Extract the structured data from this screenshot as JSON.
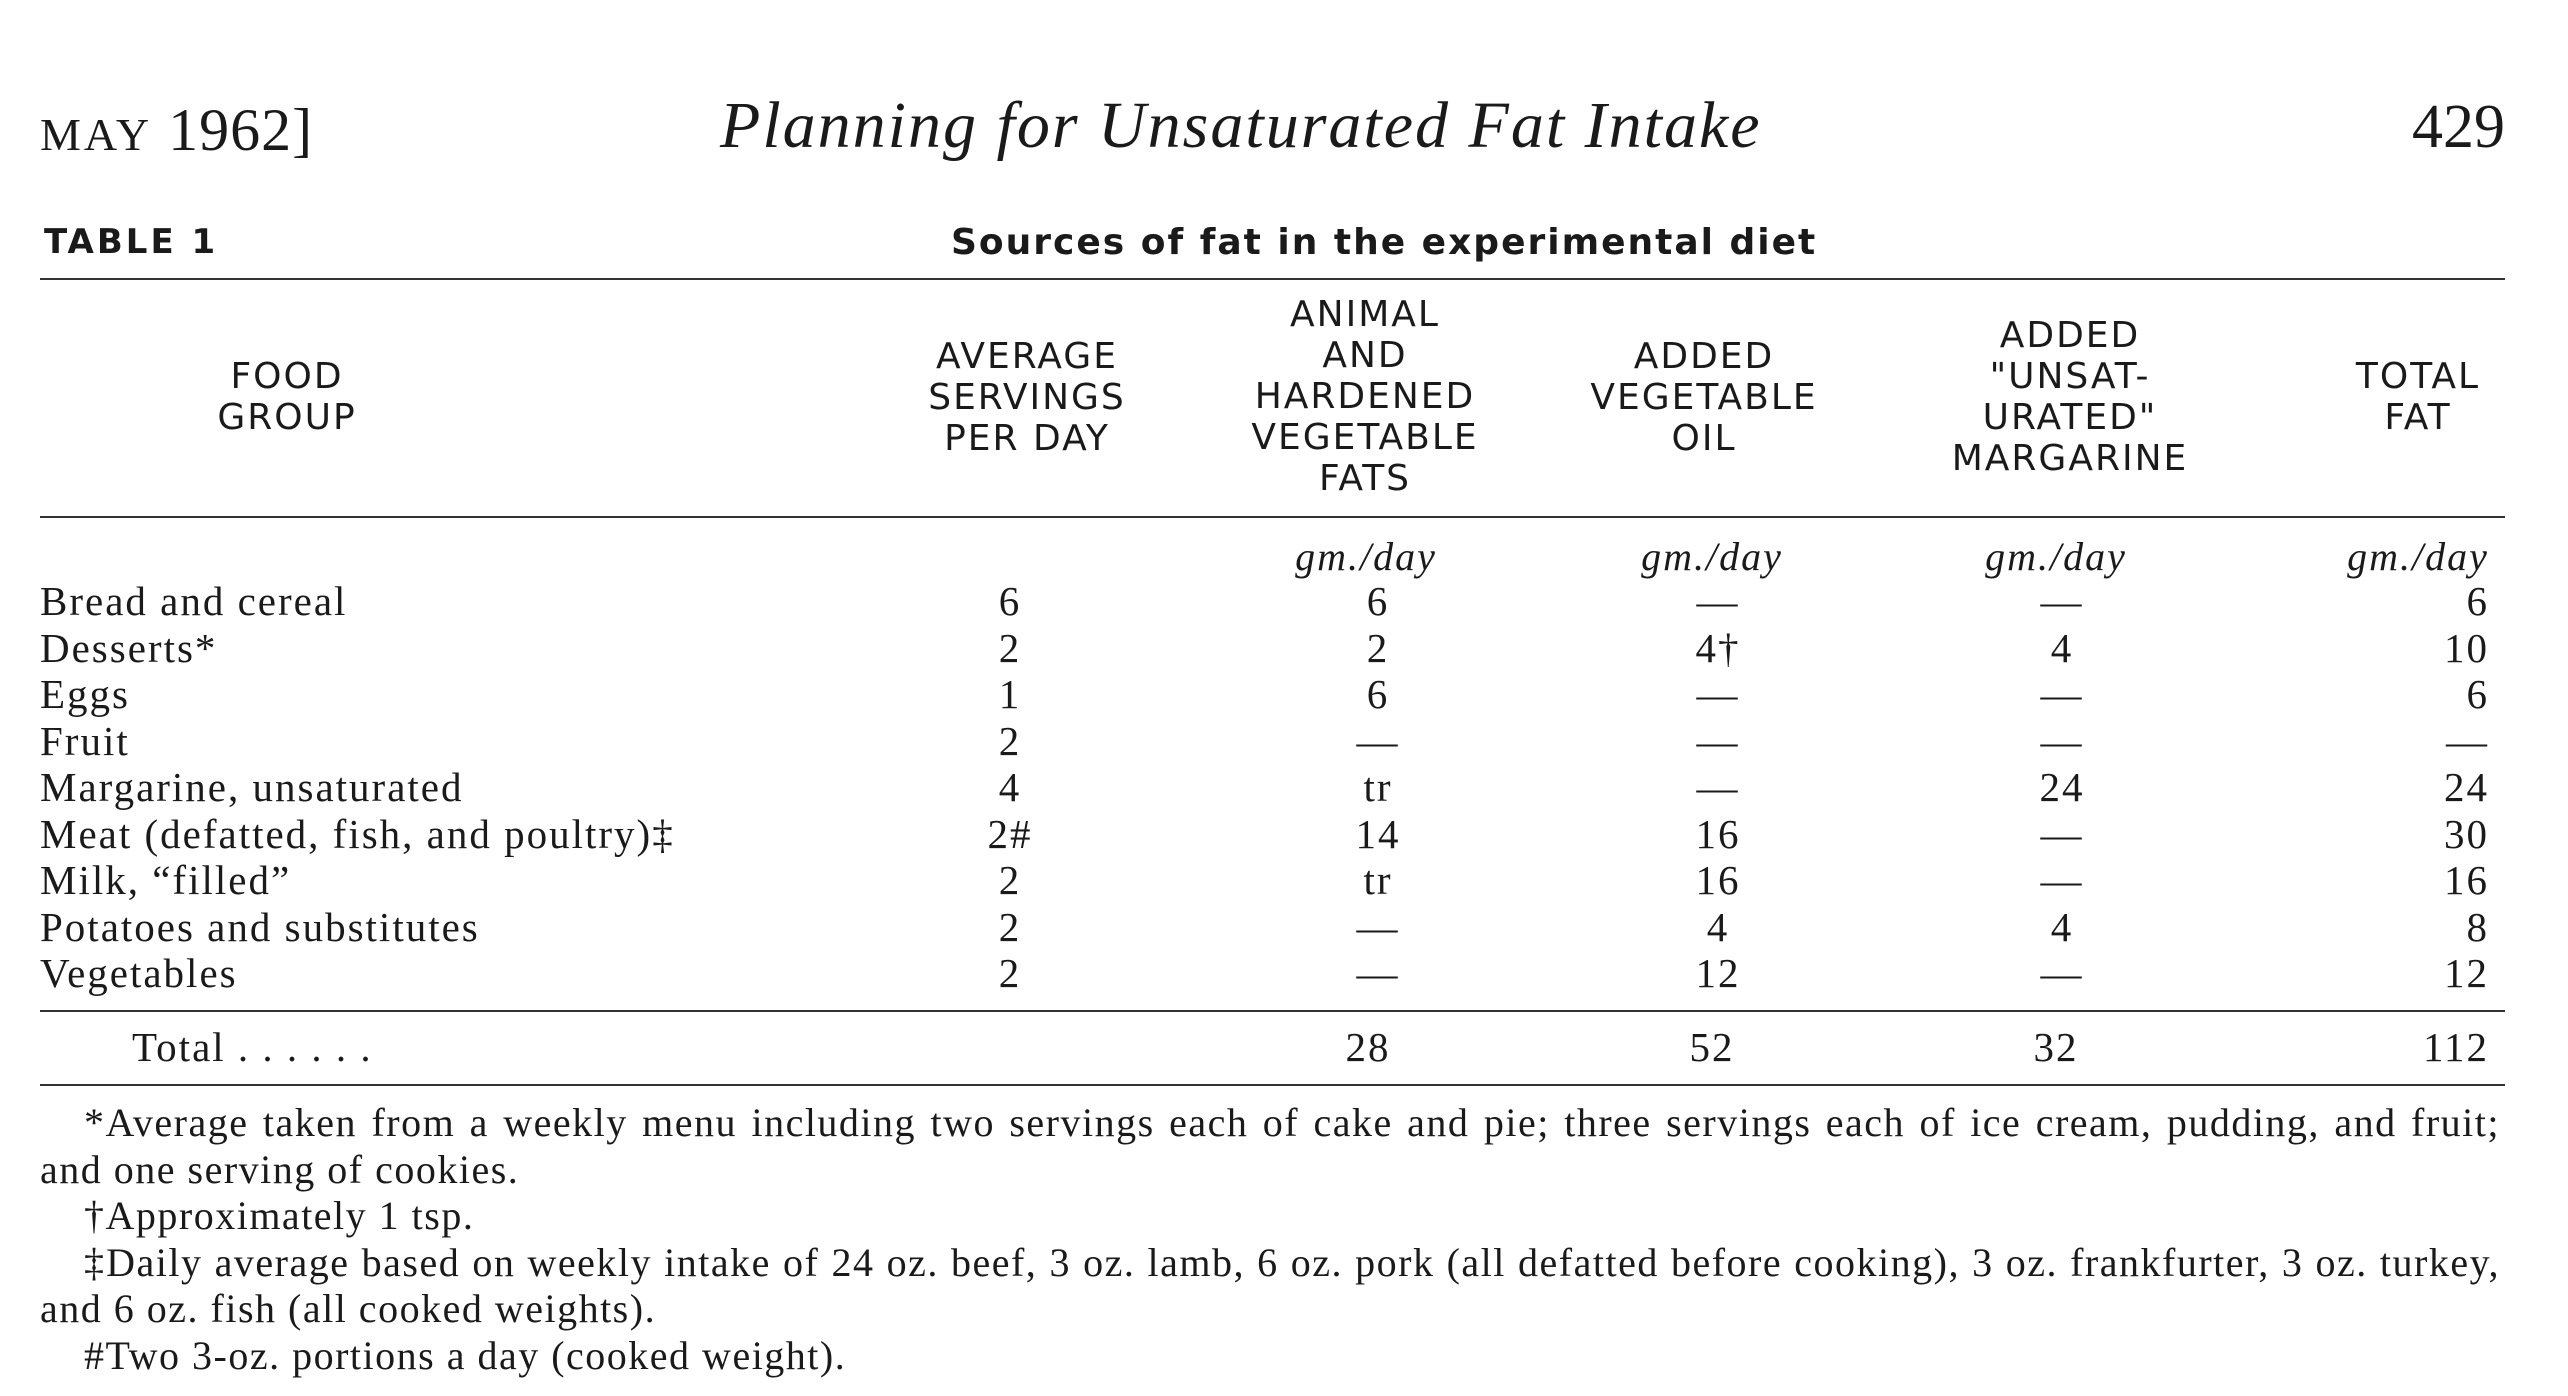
{
  "running_header": {
    "month": "MAY",
    "year_bracket": "1962]",
    "title": "Planning for Unsaturated Fat Intake",
    "page_number": "429"
  },
  "table": {
    "label": "TABLE 1",
    "title": "Sources of fat in the experimental diet",
    "columns": [
      {
        "key": "food",
        "heading": "FOOD\nGROUP",
        "unit": ""
      },
      {
        "key": "servings",
        "heading": "AVERAGE\nSERVINGS\nPER DAY",
        "unit": ""
      },
      {
        "key": "animal",
        "heading": "ANIMAL\nAND\nHARDENED\nVEGETABLE\nFATS",
        "unit": "gm./day"
      },
      {
        "key": "oil",
        "heading": "ADDED\nVEGETABLE\nOIL",
        "unit": "gm./day"
      },
      {
        "key": "margarine",
        "heading": "ADDED\n\"UNSAT-\nURATED\"\nMARGARINE",
        "unit": "gm./day"
      },
      {
        "key": "total",
        "heading": "TOTAL\nFAT",
        "unit": "gm./day"
      }
    ],
    "rows": [
      {
        "food": "Bread and cereal",
        "servings": "6",
        "animal": "6",
        "oil": "—",
        "margarine": "—",
        "total": "6"
      },
      {
        "food": "Desserts*",
        "servings": "2",
        "animal": "2",
        "oil": "4†",
        "margarine": "4",
        "total": "10"
      },
      {
        "food": "Eggs",
        "servings": "1",
        "animal": "6",
        "oil": "—",
        "margarine": "—",
        "total": "6"
      },
      {
        "food": "Fruit",
        "servings": "2",
        "animal": "—",
        "oil": "—",
        "margarine": "—",
        "total": "—"
      },
      {
        "food": "Margarine, unsaturated",
        "servings": "4",
        "animal": "tr",
        "oil": "—",
        "margarine": "24",
        "total": "24"
      },
      {
        "food": "Meat (defatted, fish, and poultry)‡",
        "servings": "2#",
        "animal": "14",
        "oil": "16",
        "margarine": "—",
        "total": "30"
      },
      {
        "food": "Milk, “filled”",
        "servings": "2",
        "animal": "tr",
        "oil": "16",
        "margarine": "—",
        "total": "16"
      },
      {
        "food": "Potatoes and substitutes",
        "servings": "2",
        "animal": "—",
        "oil": "4",
        "margarine": "4",
        "total": "8"
      },
      {
        "food": "Vegetables",
        "servings": "2",
        "animal": "—",
        "oil": "12",
        "margarine": "—",
        "total": "12"
      }
    ],
    "total_row": {
      "label": "Total . . . . . .",
      "animal": "28",
      "oil": "52",
      "margarine": "32",
      "total": "112"
    }
  },
  "footnotes": [
    "*Average taken from a weekly menu including two servings each of cake and pie; three servings each of ice cream, pudding, and fruit; and one serving of cookies.",
    "†Approximately 1 tsp.",
    "‡Daily average based on weekly intake of 24 oz. beef, 3 oz. lamb, 6 oz. pork (all defatted before cooking), 3 oz. frankfurter, 3 oz. turkey, and 6 oz. fish (all cooked weights).",
    "#Two 3-oz. portions a day (cooked weight)."
  ]
}
